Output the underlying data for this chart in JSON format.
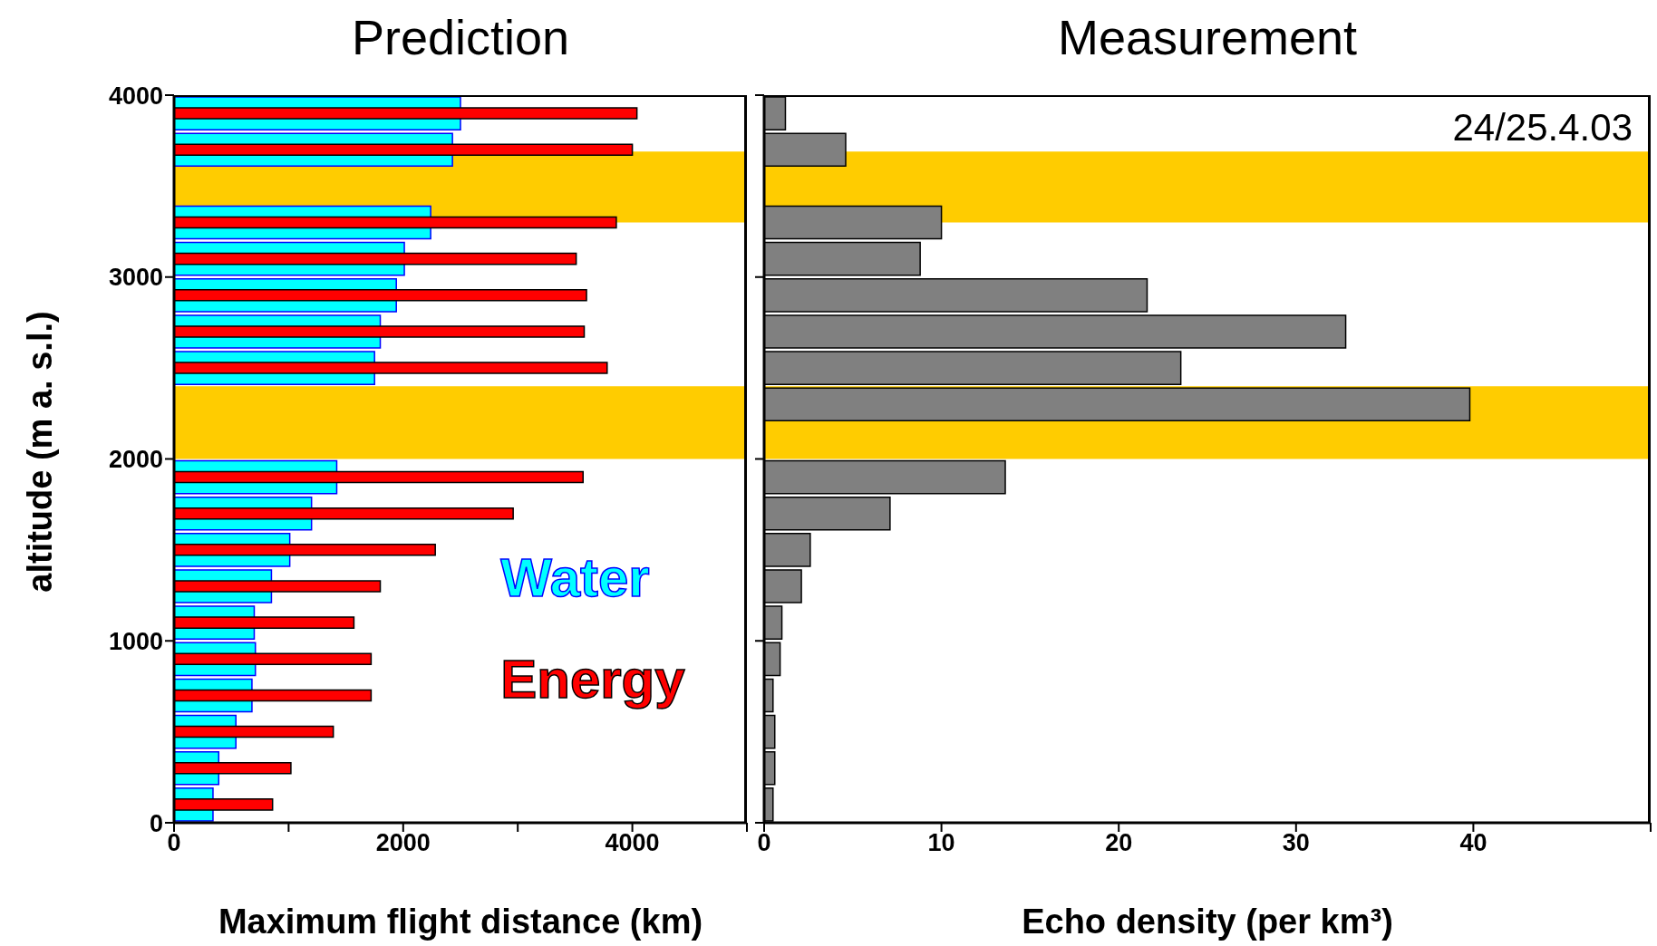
{
  "chart_data": [
    {
      "type": "histogram",
      "orientation": "horizontal",
      "title": "Prediction",
      "xlabel": "Maximum flight distance (km)",
      "ylabel": "altitude  (m a. s.l.)",
      "bins": [
        0,
        200,
        400,
        600,
        800,
        1000,
        1200,
        1400,
        1600,
        1800,
        2000,
        2200,
        2400,
        2600,
        2800,
        3000,
        3200,
        3400,
        3600,
        3800,
        4000
      ],
      "series": [
        {
          "name": "Water",
          "color": "#00ffff",
          "values": [
            340,
            390,
            540,
            680,
            710,
            700,
            850,
            1010,
            1200,
            1420,
            null,
            null,
            1750,
            1800,
            1940,
            2010,
            2240,
            null,
            2430,
            2500
          ]
        },
        {
          "name": "Energy",
          "color": "#ff0000",
          "values": [
            860,
            1020,
            1390,
            1720,
            1720,
            1570,
            1800,
            2280,
            2960,
            3570,
            null,
            null,
            3780,
            3580,
            3600,
            3510,
            3860,
            null,
            4000,
            4040
          ]
        }
      ],
      "xlim": [
        0,
        5000
      ],
      "xticks": [
        0,
        {
          "value": 1000,
          "label": null
        },
        2000,
        {
          "value": 3000,
          "label": null
        },
        4000,
        {
          "value": 5000,
          "label": null
        }
      ],
      "ylim": [
        0,
        4000
      ],
      "yticks": [
        0,
        1000,
        2000,
        3000,
        4000
      ],
      "bands": [
        {
          "axis": "y",
          "from": 3300,
          "to": 3690,
          "color": "#ffcc00"
        },
        {
          "axis": "y",
          "from": 2000,
          "to": 2400,
          "color": "#ffcc00"
        }
      ],
      "legend": "right"
    },
    {
      "type": "histogram",
      "orientation": "horizontal",
      "title": "Measurement",
      "xlabel": "Echo density (per km³)",
      "annotations": [
        "24/25.4.03"
      ],
      "bins": [
        0,
        200,
        400,
        600,
        800,
        1000,
        1200,
        1400,
        1600,
        1800,
        2000,
        2200,
        2400,
        2600,
        2800,
        3000,
        3200,
        3400,
        3600,
        3800,
        4000
      ],
      "color": "#808080",
      "values": [
        0.5,
        0.6,
        0.6,
        0.5,
        0.9,
        1.0,
        2.1,
        2.6,
        7.1,
        13.6,
        null,
        39.8,
        23.5,
        32.8,
        21.6,
        8.8,
        10.0,
        null,
        4.6,
        1.2
      ],
      "xlim": [
        0,
        50
      ],
      "xticks": [
        0,
        10,
        20,
        30,
        40,
        {
          "value": 50,
          "label": null
        }
      ],
      "ylim": [
        0,
        4000
      ],
      "yticks": [
        {
          "value": 0,
          "label": null
        },
        {
          "value": 1000,
          "label": null
        },
        {
          "value": 2000,
          "label": null
        },
        {
          "value": 3000,
          "label": null
        },
        {
          "value": 4000,
          "label": null
        }
      ],
      "tick_labels": "x",
      "bands": [
        {
          "axis": "y",
          "from": 3300,
          "to": 3690,
          "color": "#ffcc00"
        },
        {
          "axis": "y",
          "from": 2000,
          "to": 2400,
          "color": "#ffcc00"
        }
      ]
    }
  ]
}
